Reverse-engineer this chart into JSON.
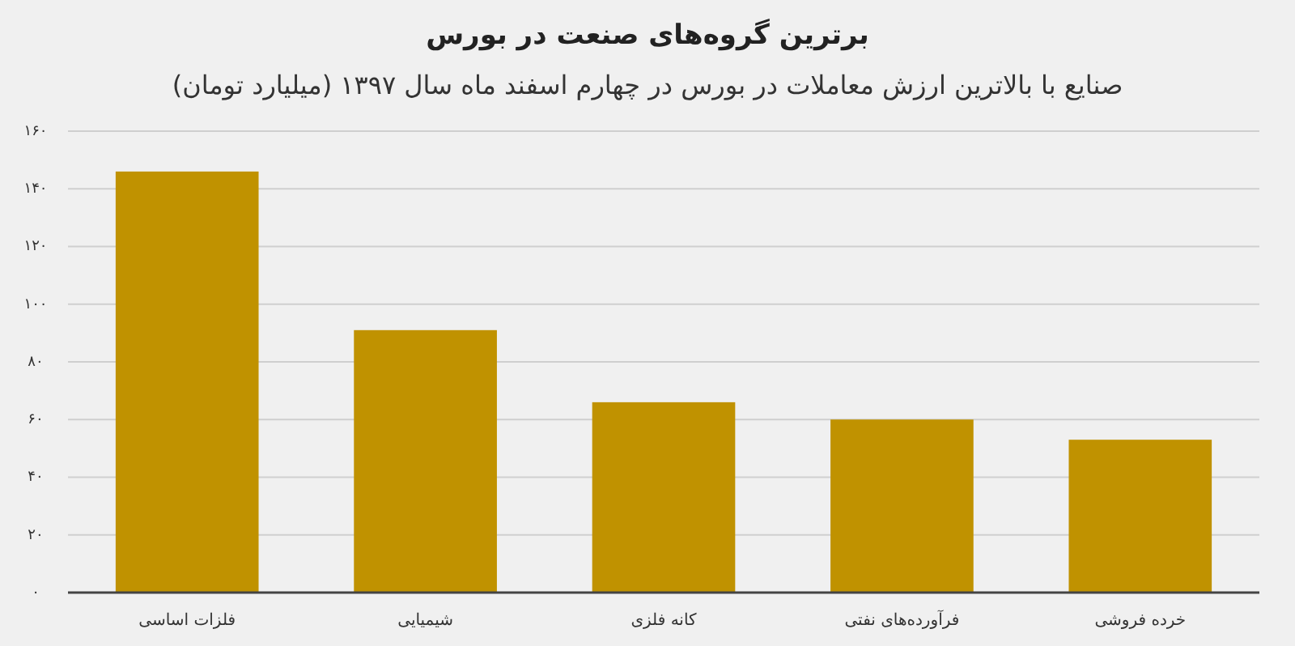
{
  "chart_data": {
    "type": "bar",
    "title": "برترین گروه‌های صنعت در بورس",
    "subtitle": "صنایع با بالاترین ارزش معاملات در بورس در چهارم اسفند ماه سال ۱۳۹۷ (میلیارد تومان)",
    "categories": [
      "فلزات اساسی",
      "شیمیایی",
      "کانه فلزی",
      "فرآورده‌های نفتی",
      "خرده فروشی"
    ],
    "values": [
      146,
      91,
      66,
      60,
      53
    ],
    "color": "#c09200",
    "ylim": [
      0,
      160
    ],
    "yticks": [
      {
        "value": 0,
        "label": "۰"
      },
      {
        "value": 20,
        "label": "۲۰"
      },
      {
        "value": 40,
        "label": "۴۰"
      },
      {
        "value": 60,
        "label": "۶۰"
      },
      {
        "value": 80,
        "label": "۸۰"
      },
      {
        "value": 100,
        "label": "۱۰۰"
      },
      {
        "value": 120,
        "label": "۱۲۰"
      },
      {
        "value": 140,
        "label": "۱۴۰"
      },
      {
        "value": 160,
        "label": "۱۶۰"
      }
    ],
    "grid": "y"
  }
}
